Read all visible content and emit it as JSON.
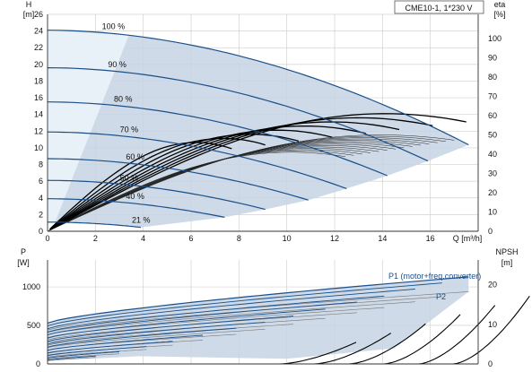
{
  "chart_data": [
    {
      "type": "line",
      "title": "CME10-1, 1*230 V",
      "x_axis": {
        "label": "Q [m³/h]",
        "min": 0,
        "max": 18,
        "ticks": [
          0,
          2,
          4,
          6,
          8,
          10,
          12,
          14,
          16
        ]
      },
      "y_axis_left": {
        "label_top": "H",
        "label_unit": "[m]",
        "min": 0,
        "max": 26,
        "ticks": [
          0,
          2,
          4,
          6,
          8,
          10,
          12,
          14,
          16,
          18,
          20,
          22,
          24,
          26
        ]
      },
      "y_axis_right": {
        "label_top": "eta",
        "label_unit": "[%]",
        "min": 0,
        "max": 100,
        "ticks": [
          0,
          10,
          20,
          30,
          40,
          50,
          60,
          70,
          80,
          90,
          100
        ]
      },
      "grid": true,
      "colors": {
        "head_curve": "#1a4f8a",
        "operating_area": "#c5d4e3",
        "efficiency_curve": "#000000",
        "thin_curve": "#222222"
      },
      "head_curves": [
        {
          "label": "100 %",
          "shutoff_head": 24.1,
          "max_flow": 17.6
        },
        {
          "label": "90 %",
          "shutoff_head": 19.6,
          "max_flow": 15.9
        },
        {
          "label": "80 %",
          "shutoff_head": 15.5,
          "max_flow": 14.2
        },
        {
          "label": "70 %",
          "shutoff_head": 11.9,
          "max_flow": 12.5
        },
        {
          "label": "60 %",
          "shutoff_head": 8.7,
          "max_flow": 10.9
        },
        {
          "label": "50 %",
          "shutoff_head": 6.1,
          "max_flow": 9.1
        },
        {
          "label": "40 %",
          "shutoff_head": 3.9,
          "max_flow": 7.4
        },
        {
          "label": "21 %",
          "shutoff_head": 1.1,
          "max_flow": 3.9
        }
      ],
      "efficiency_max_percent": 57
    },
    {
      "type": "line",
      "x_axis": {
        "min": 0,
        "max": 18
      },
      "y_axis_left": {
        "label_top": "P",
        "label_unit": "[W]",
        "min": 0,
        "max": 1350,
        "ticks": [
          0,
          500,
          1000
        ]
      },
      "y_axis_right": {
        "label_top": "NPSH",
        "label_unit": "[m]",
        "min": 0,
        "max": 25,
        "ticks": [
          0,
          10,
          20
        ]
      },
      "grid": true,
      "series": [
        {
          "name": "P1 (motor+freq.converter)",
          "max_power": 1130
        },
        {
          "name": "P2",
          "max_power": 940
        }
      ],
      "npsh_max": 19.5
    }
  ]
}
